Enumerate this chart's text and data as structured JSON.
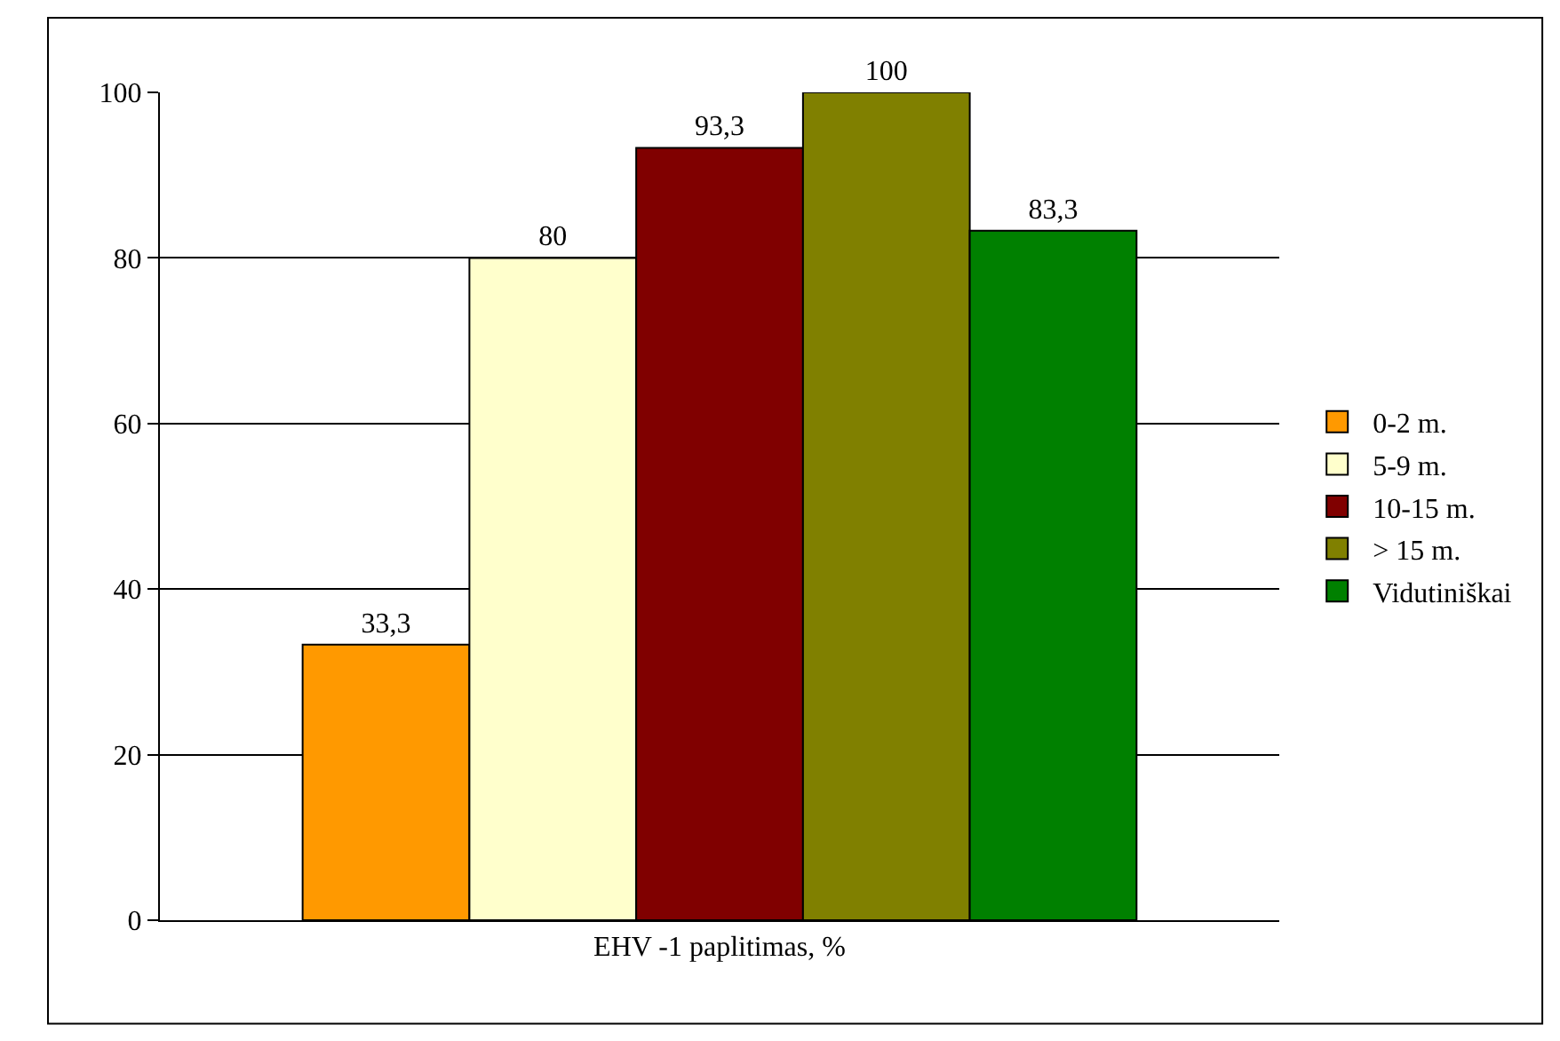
{
  "chart_data": {
    "type": "bar",
    "categories": [
      "EHV -1 paplitimas, %"
    ],
    "series": [
      {
        "name": "0-2 m.",
        "color": "#ff9900",
        "values": [
          33.3
        ],
        "value_labels": [
          "33,3"
        ]
      },
      {
        "name": "5-9 m.",
        "color": "#ffffcc",
        "values": [
          80
        ],
        "value_labels": [
          "80"
        ]
      },
      {
        "name": "10-15 m.",
        "color": "#800000",
        "values": [
          93.3
        ],
        "value_labels": [
          "93,3"
        ]
      },
      {
        "name": "> 15 m.",
        "color": "#808000",
        "values": [
          100
        ],
        "value_labels": [
          "100"
        ]
      },
      {
        "name": "Vidutiniškai",
        "color": "#008000",
        "values": [
          83.3
        ],
        "value_labels": [
          "83,3"
        ]
      }
    ],
    "ylim": [
      0,
      100
    ],
    "yticks": [
      0,
      20,
      40,
      60,
      80,
      100
    ],
    "grid": "y",
    "legend": "right"
  }
}
